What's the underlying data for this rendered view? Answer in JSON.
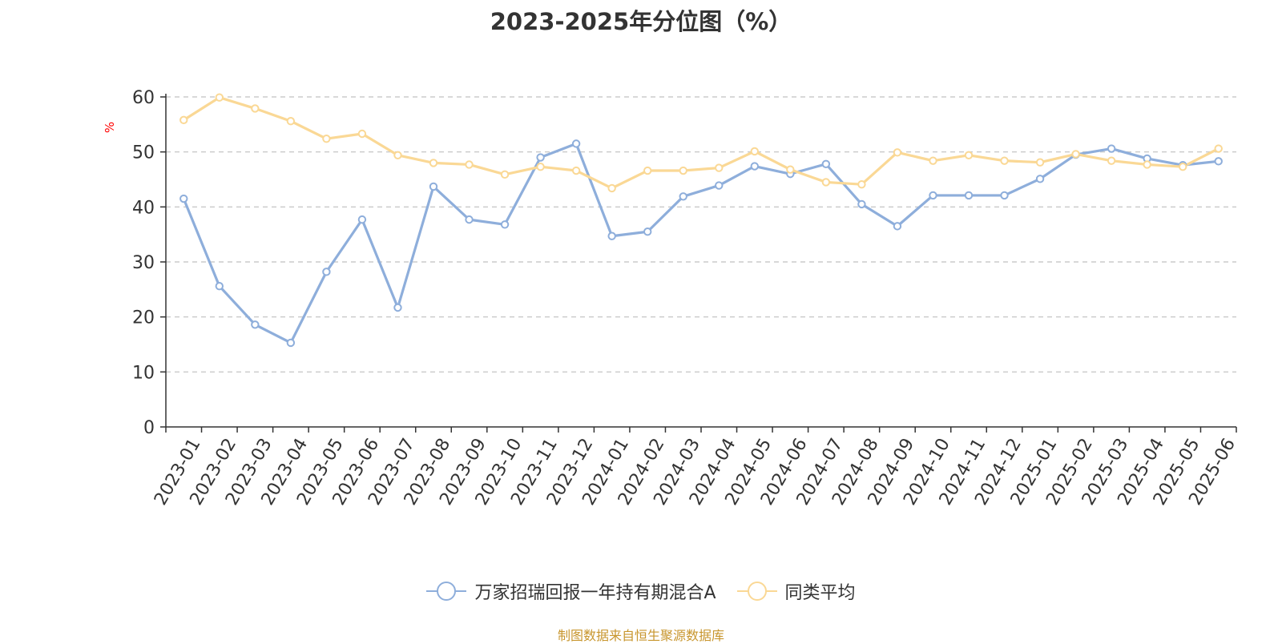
{
  "chart_data": {
    "type": "line",
    "title": "2023-2025年分位图（%）",
    "ylabel": "%",
    "ylim": [
      0,
      60
    ],
    "yticks": [
      0,
      10,
      20,
      30,
      40,
      50,
      60
    ],
    "grid": true,
    "legend_position": "bottom",
    "categories": [
      "2023-01",
      "2023-02",
      "2023-03",
      "2023-04",
      "2023-05",
      "2023-06",
      "2023-07",
      "2023-08",
      "2023-09",
      "2023-10",
      "2023-11",
      "2023-12",
      "2024-01",
      "2024-02",
      "2024-03",
      "2024-04",
      "2024-05",
      "2024-06",
      "2024-07",
      "2024-08",
      "2024-09",
      "2024-10",
      "2024-11",
      "2024-12",
      "2025-01",
      "2025-02",
      "2025-03",
      "2025-04",
      "2025-05",
      "2025-06"
    ],
    "series": [
      {
        "name": "万家招瑞回报一年持有期混合A",
        "color": "#8eaedb",
        "values": [
          41.5,
          25.6,
          18.6,
          15.3,
          28.2,
          37.7,
          21.7,
          43.7,
          37.7,
          36.8,
          49.0,
          51.5,
          34.7,
          35.5,
          41.9,
          43.9,
          47.4,
          46.0,
          47.8,
          40.5,
          36.5,
          42.1,
          42.1,
          42.1,
          45.1,
          49.5,
          50.6,
          48.8,
          47.6,
          48.3
        ]
      },
      {
        "name": "同类平均",
        "color": "#fad895",
        "values": [
          55.8,
          59.9,
          57.9,
          55.6,
          52.4,
          53.3,
          49.4,
          48.0,
          47.7,
          45.9,
          47.3,
          46.6,
          43.4,
          46.6,
          46.6,
          47.1,
          50.1,
          46.8,
          44.5,
          44.1,
          49.9,
          48.4,
          49.4,
          48.4,
          48.1,
          49.6,
          48.4,
          47.7,
          47.3,
          50.6
        ]
      }
    ]
  },
  "footer": {
    "source": "制图数据来自恒生聚源数据库"
  }
}
